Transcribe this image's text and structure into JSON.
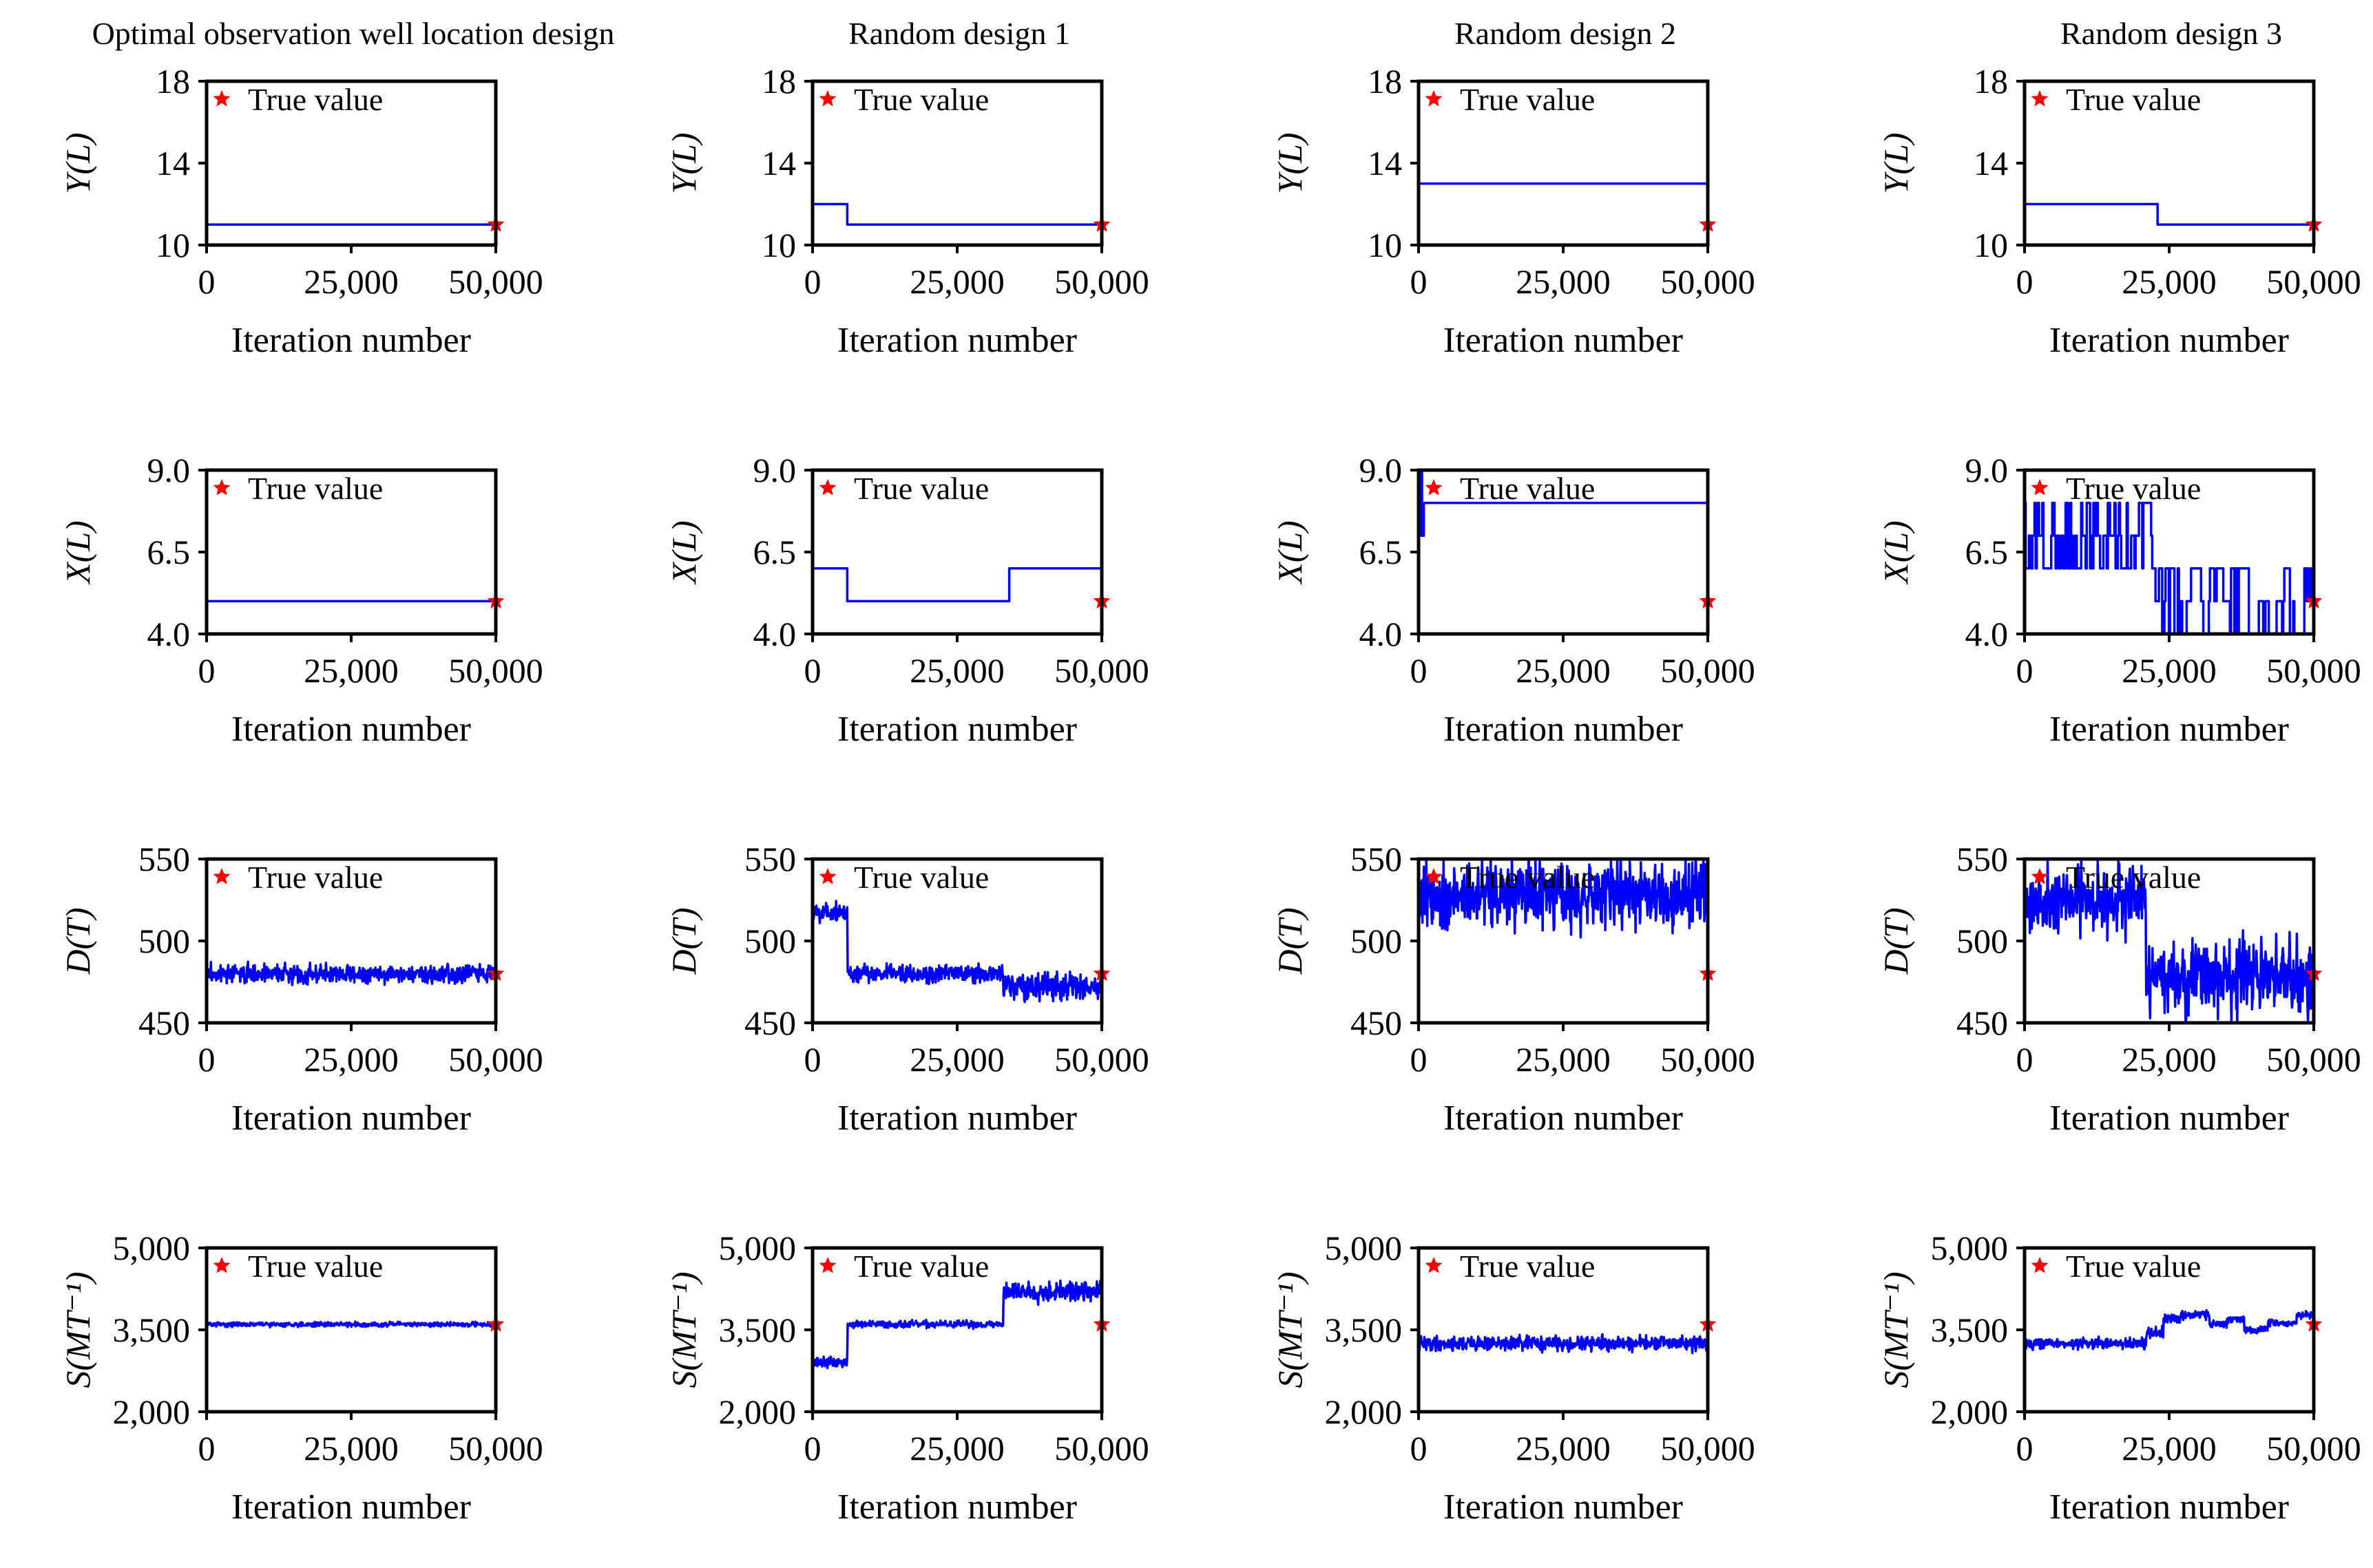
{
  "figure": {
    "columns": [
      "Optimal observation well location design",
      "Random design 1",
      "Random design 2",
      "Random design 3"
    ],
    "legend_label": "True value",
    "xlabel": "Iteration number",
    "colors": {
      "trace": "#0000ff",
      "true_marker": "#ff0000",
      "axes": "#000000"
    }
  },
  "chart_data": [
    {
      "type": "line",
      "row": 0,
      "col": 0,
      "title": "Optimal observation well location design",
      "ylabel": "Y(L)",
      "xlabel": "Iteration number",
      "xlim": [
        0,
        50000
      ],
      "ylim": [
        10,
        18
      ],
      "xticks": [
        0,
        25000,
        50000
      ],
      "xtick_labels": [
        "0",
        "25,000",
        "50,000"
      ],
      "yticks": [
        10,
        14,
        18
      ],
      "ytick_labels": [
        "10",
        "14",
        "18"
      ],
      "true_value": 11,
      "legend": "True value",
      "series": [
        {
          "name": "chain",
          "kind": "step",
          "segments": [
            [
              0,
              11
            ]
          ]
        }
      ]
    },
    {
      "type": "line",
      "row": 0,
      "col": 1,
      "title": "Random design 1",
      "ylabel": "Y(L)",
      "xlabel": "Iteration number",
      "xlim": [
        0,
        50000
      ],
      "ylim": [
        10,
        18
      ],
      "xticks": [
        0,
        25000,
        50000
      ],
      "xtick_labels": [
        "0",
        "25,000",
        "50,000"
      ],
      "yticks": [
        10,
        14,
        18
      ],
      "ytick_labels": [
        "10",
        "14",
        "18"
      ],
      "true_value": 11,
      "legend": "True value",
      "series": [
        {
          "name": "chain",
          "kind": "step",
          "segments": [
            [
              0,
              12
            ],
            [
              6000,
              11
            ]
          ]
        }
      ]
    },
    {
      "type": "line",
      "row": 0,
      "col": 2,
      "title": "Random design 2",
      "ylabel": "Y(L)",
      "xlabel": "Iteration number",
      "xlim": [
        0,
        50000
      ],
      "ylim": [
        10,
        18
      ],
      "xticks": [
        0,
        25000,
        50000
      ],
      "xtick_labels": [
        "0",
        "25,000",
        "50,000"
      ],
      "yticks": [
        10,
        14,
        18
      ],
      "ytick_labels": [
        "10",
        "14",
        "18"
      ],
      "true_value": 11,
      "legend": "True value",
      "series": [
        {
          "name": "chain",
          "kind": "step",
          "segments": [
            [
              0,
              13
            ]
          ]
        }
      ]
    },
    {
      "type": "line",
      "row": 0,
      "col": 3,
      "title": "Random design 3",
      "ylabel": "Y(L)",
      "xlabel": "Iteration number",
      "xlim": [
        0,
        50000
      ],
      "ylim": [
        10,
        18
      ],
      "xticks": [
        0,
        25000,
        50000
      ],
      "xtick_labels": [
        "0",
        "25,000",
        "50,000"
      ],
      "yticks": [
        10,
        14,
        18
      ],
      "ytick_labels": [
        "10",
        "14",
        "18"
      ],
      "true_value": 11,
      "legend": "True value",
      "series": [
        {
          "name": "chain",
          "kind": "step",
          "segments": [
            [
              0,
              12
            ],
            [
              23000,
              11
            ]
          ]
        }
      ]
    },
    {
      "type": "line",
      "row": 1,
      "col": 0,
      "ylabel": "X(L)",
      "xlabel": "Iteration number",
      "xlim": [
        0,
        50000
      ],
      "ylim": [
        4,
        9
      ],
      "xticks": [
        0,
        25000,
        50000
      ],
      "xtick_labels": [
        "0",
        "25,000",
        "50,000"
      ],
      "yticks": [
        4,
        6.5,
        9
      ],
      "ytick_labels": [
        "4.0",
        "6.5",
        "9.0"
      ],
      "true_value": 5,
      "legend": "True value",
      "series": [
        {
          "name": "chain",
          "kind": "step",
          "segments": [
            [
              0,
              5
            ]
          ]
        }
      ]
    },
    {
      "type": "line",
      "row": 1,
      "col": 1,
      "ylabel": "X(L)",
      "xlabel": "Iteration number",
      "xlim": [
        0,
        50000
      ],
      "ylim": [
        4,
        9
      ],
      "xticks": [
        0,
        25000,
        50000
      ],
      "xtick_labels": [
        "0",
        "25,000",
        "50,000"
      ],
      "yticks": [
        4,
        6.5,
        9
      ],
      "ytick_labels": [
        "4.0",
        "6.5",
        "9.0"
      ],
      "true_value": 5,
      "legend": "True value",
      "series": [
        {
          "name": "chain",
          "kind": "step",
          "segments": [
            [
              0,
              6
            ],
            [
              6000,
              5
            ],
            [
              34000,
              6
            ]
          ]
        }
      ]
    },
    {
      "type": "line",
      "row": 1,
      "col": 2,
      "ylabel": "X(L)",
      "xlabel": "Iteration number",
      "xlim": [
        0,
        50000
      ],
      "ylim": [
        4,
        9
      ],
      "xticks": [
        0,
        25000,
        50000
      ],
      "xtick_labels": [
        "0",
        "25,000",
        "50,000"
      ],
      "yticks": [
        4,
        6.5,
        9
      ],
      "ytick_labels": [
        "4.0",
        "6.5",
        "9.0"
      ],
      "true_value": 5,
      "legend": "True value",
      "series": [
        {
          "name": "chain",
          "kind": "step",
          "segments": [
            [
              0,
              7
            ],
            [
              300,
              9
            ],
            [
              600,
              7
            ],
            [
              900,
              8
            ]
          ]
        }
      ]
    },
    {
      "type": "line",
      "row": 1,
      "col": 3,
      "ylabel": "X(L)",
      "xlabel": "Iteration number",
      "xlim": [
        0,
        50000
      ],
      "ylim": [
        4,
        9
      ],
      "xticks": [
        0,
        25000,
        50000
      ],
      "xtick_labels": [
        "0",
        "25,000",
        "50,000"
      ],
      "yticks": [
        4,
        6.5,
        9
      ],
      "ytick_labels": [
        "4.0",
        "6.5",
        "9.0"
      ],
      "true_value": 5,
      "legend": "True value",
      "series": [
        {
          "name": "chain",
          "kind": "jumpy",
          "seed": 17,
          "phases": [
            [
              0,
              22000,
              [
                6,
                7,
                8
              ],
              0.9
            ],
            [
              22000,
              50000,
              [
                4,
                5,
                6
              ],
              0.45
            ]
          ]
        }
      ]
    },
    {
      "type": "line",
      "row": 2,
      "col": 0,
      "ylabel": "D(T)",
      "xlabel": "Iteration number",
      "xlim": [
        0,
        50000
      ],
      "ylim": [
        450,
        550
      ],
      "xticks": [
        0,
        25000,
        50000
      ],
      "xtick_labels": [
        "0",
        "25,000",
        "50,000"
      ],
      "yticks": [
        450,
        500,
        550
      ],
      "ytick_labels": [
        "450",
        "500",
        "550"
      ],
      "true_value": 480,
      "legend": "True value",
      "series": [
        {
          "name": "chain",
          "kind": "noise",
          "seed": 3,
          "phases": [
            [
              0,
              50000,
              480,
              3.5
            ]
          ]
        }
      ]
    },
    {
      "type": "line",
      "row": 2,
      "col": 1,
      "ylabel": "D(T)",
      "xlabel": "Iteration number",
      "xlim": [
        0,
        50000
      ],
      "ylim": [
        450,
        550
      ],
      "xticks": [
        0,
        25000,
        50000
      ],
      "xtick_labels": [
        "0",
        "25,000",
        "50,000"
      ],
      "yticks": [
        450,
        500,
        550
      ],
      "ytick_labels": [
        "450",
        "500",
        "550"
      ],
      "true_value": 480,
      "legend": "True value",
      "series": [
        {
          "name": "chain",
          "kind": "noise",
          "seed": 5,
          "phases": [
            [
              0,
              6000,
              518,
              4
            ],
            [
              6000,
              33000,
              480,
              3.5
            ],
            [
              33000,
              50000,
              472,
              5.5
            ]
          ]
        }
      ]
    },
    {
      "type": "line",
      "row": 2,
      "col": 2,
      "ylabel": "D(T)",
      "xlabel": "Iteration number",
      "xlim": [
        0,
        50000
      ],
      "ylim": [
        450,
        550
      ],
      "xticks": [
        0,
        25000,
        50000
      ],
      "xtick_labels": [
        "0",
        "25,000",
        "50,000"
      ],
      "yticks": [
        450,
        500,
        550
      ],
      "ytick_labels": [
        "450",
        "500",
        "550"
      ],
      "true_value": 480,
      "legend": "True value",
      "series": [
        {
          "name": "chain",
          "kind": "noise",
          "seed": 9,
          "phases": [
            [
              0,
              50000,
              528,
              13
            ]
          ]
        }
      ]
    },
    {
      "type": "line",
      "row": 2,
      "col": 3,
      "ylabel": "D(T)",
      "xlabel": "Iteration number",
      "xlim": [
        0,
        50000
      ],
      "ylim": [
        450,
        550
      ],
      "xticks": [
        0,
        25000,
        50000
      ],
      "xtick_labels": [
        "0",
        "25,000",
        "50,000"
      ],
      "yticks": [
        450,
        500,
        550
      ],
      "ytick_labels": [
        "450",
        "500",
        "550"
      ],
      "true_value": 480,
      "legend": "True value",
      "series": [
        {
          "name": "chain",
          "kind": "noise",
          "seed": 21,
          "phases": [
            [
              0,
              21000,
              525,
              12
            ],
            [
              21000,
              50000,
              478,
              14
            ]
          ]
        }
      ]
    },
    {
      "type": "line",
      "row": 3,
      "col": 0,
      "ylabel": "S(MT⁻¹)",
      "xlabel": "Iteration number",
      "xlim": [
        0,
        50000
      ],
      "ylim": [
        2000,
        5000
      ],
      "xticks": [
        0,
        25000,
        50000
      ],
      "xtick_labels": [
        "0",
        "25,000",
        "50,000"
      ],
      "yticks": [
        2000,
        3500,
        5000
      ],
      "ytick_labels": [
        "2,000",
        "3,500",
        "5,000"
      ],
      "true_value": 3600,
      "legend": "True value",
      "series": [
        {
          "name": "chain",
          "kind": "noise",
          "seed": 31,
          "phases": [
            [
              0,
              50000,
              3600,
              25
            ]
          ]
        }
      ]
    },
    {
      "type": "line",
      "row": 3,
      "col": 1,
      "ylabel": "S(MT⁻¹)",
      "xlabel": "Iteration number",
      "xlim": [
        0,
        50000
      ],
      "ylim": [
        2000,
        5000
      ],
      "xticks": [
        0,
        25000,
        50000
      ],
      "xtick_labels": [
        "0",
        "25,000",
        "50,000"
      ],
      "yticks": [
        2000,
        3500,
        5000
      ],
      "ytick_labels": [
        "2,000",
        "3,500",
        "5,000"
      ],
      "true_value": 3600,
      "legend": "True value",
      "series": [
        {
          "name": "chain",
          "kind": "noise",
          "seed": 37,
          "phases": [
            [
              0,
              6000,
              2900,
              60
            ],
            [
              6000,
              33000,
              3600,
              40
            ],
            [
              33000,
              50000,
              4200,
              110
            ]
          ]
        }
      ]
    },
    {
      "type": "line",
      "row": 3,
      "col": 2,
      "ylabel": "S(MT⁻¹)",
      "xlabel": "Iteration number",
      "xlim": [
        0,
        50000
      ],
      "ylim": [
        2000,
        5000
      ],
      "xticks": [
        0,
        25000,
        50000
      ],
      "xtick_labels": [
        "0",
        "25,000",
        "50,000"
      ],
      "yticks": [
        2000,
        3500,
        5000
      ],
      "ytick_labels": [
        "2,000",
        "3,500",
        "5,000"
      ],
      "true_value": 3600,
      "legend": "True value",
      "series": [
        {
          "name": "chain",
          "kind": "noise",
          "seed": 41,
          "phases": [
            [
              0,
              50000,
              3250,
              80
            ]
          ]
        }
      ]
    },
    {
      "type": "line",
      "row": 3,
      "col": 3,
      "ylabel": "S(MT⁻¹)",
      "xlabel": "Iteration number",
      "xlim": [
        0,
        50000
      ],
      "ylim": [
        2000,
        5000
      ],
      "xticks": [
        0,
        25000,
        50000
      ],
      "xtick_labels": [
        "0",
        "25,000",
        "50,000"
      ],
      "yticks": [
        2000,
        3500,
        5000
      ],
      "ytick_labels": [
        "2,000",
        "3,500",
        "5,000"
      ],
      "true_value": 3600,
      "legend": "True value",
      "series": [
        {
          "name": "chain",
          "kind": "stepnoise",
          "seed": 43,
          "phases": [
            [
              0,
              21000,
              3250,
              60
            ],
            [
              21000,
              24000,
              3450,
              60
            ],
            [
              24000,
              27000,
              3700,
              50
            ],
            [
              27000,
              32000,
              3780,
              50
            ],
            [
              32000,
              35000,
              3600,
              40
            ],
            [
              35000,
              38000,
              3700,
              40
            ],
            [
              38000,
              42000,
              3500,
              40
            ],
            [
              42000,
              47000,
              3620,
              40
            ],
            [
              47000,
              50000,
              3780,
              50
            ]
          ]
        }
      ]
    }
  ]
}
